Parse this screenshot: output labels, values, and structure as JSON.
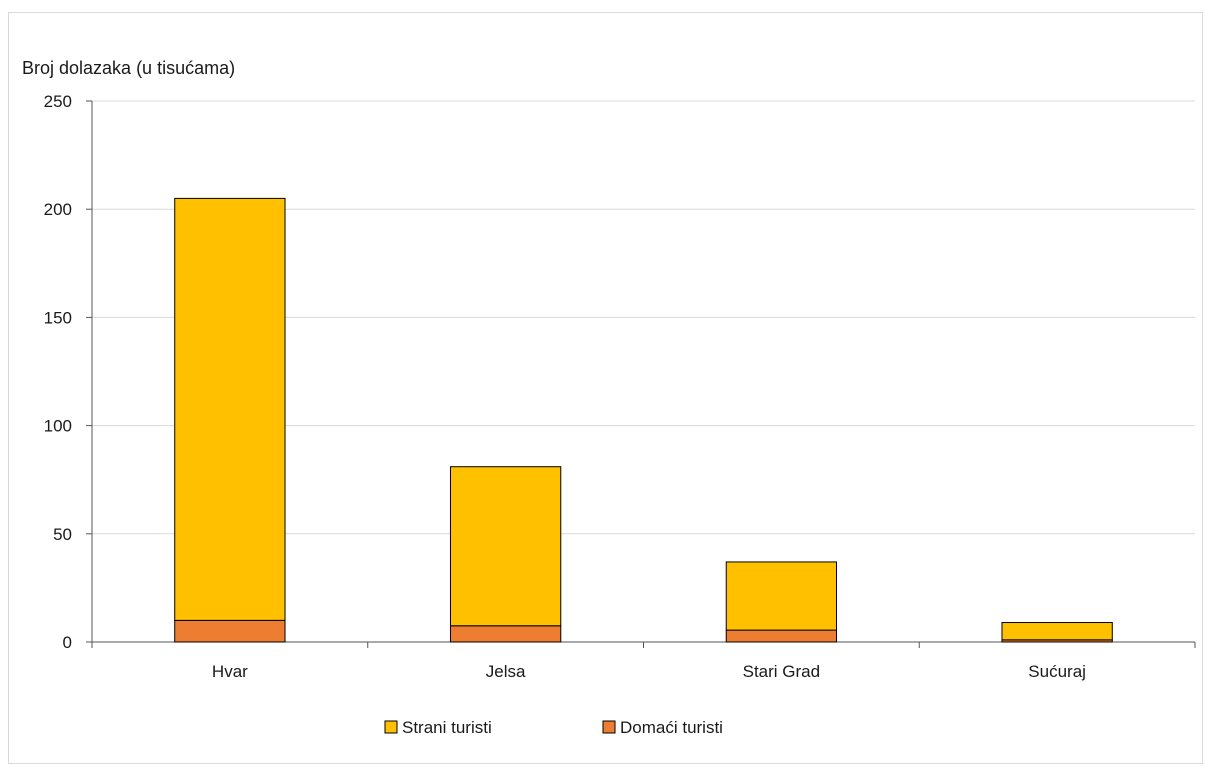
{
  "chart_data": {
    "type": "bar",
    "stacked": true,
    "ylabel": "Broj dolazaka (u tisućama)",
    "xlabel": "",
    "categories": [
      "Hvar",
      "Jelsa",
      "Stari Grad",
      "Sućuraj"
    ],
    "series": [
      {
        "name": "Domaći turisti",
        "values": [
          10,
          7.5,
          5.5,
          1
        ],
        "color": "#ED7D31"
      },
      {
        "name": "Strani turisti",
        "values": [
          195,
          73.5,
          31.5,
          8
        ],
        "color": "#FFC000"
      }
    ],
    "ylim": [
      0,
      250
    ],
    "yticks": [
      "0",
      "50",
      "100",
      "150",
      "200",
      "250"
    ],
    "grid": true,
    "legend": {
      "position": "bottom",
      "order": [
        "Strani turisti",
        "Domaći turisti"
      ]
    }
  }
}
